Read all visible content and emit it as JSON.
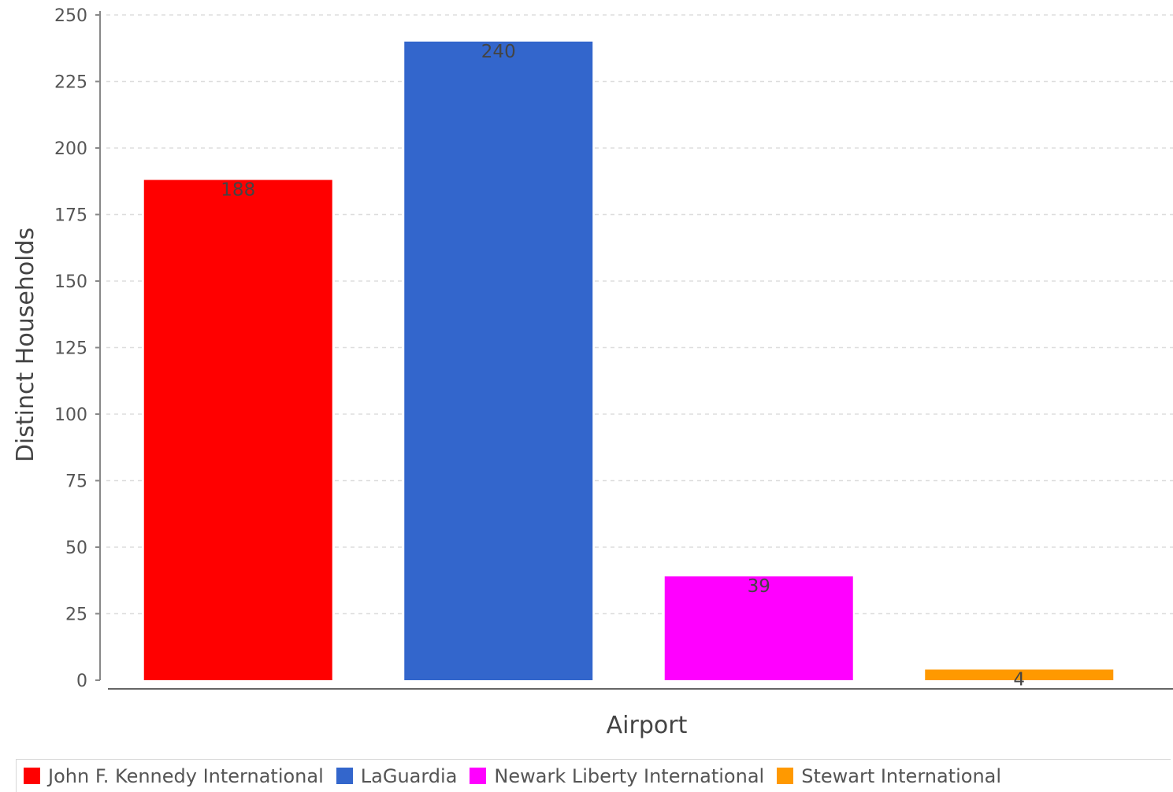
{
  "chart_data": {
    "type": "bar",
    "categories": [
      "John F. Kennedy International",
      "LaGuardia",
      "Newark Liberty International",
      "Stewart International"
    ],
    "values": [
      188,
      240,
      39,
      4
    ],
    "colors": [
      "#ff0000",
      "#3366cc",
      "#ff00ff",
      "#ff9900"
    ],
    "xlabel": "Airport",
    "ylabel": "Distinct Households",
    "ylim": [
      0,
      250
    ],
    "yticks": [
      0,
      25,
      50,
      75,
      100,
      125,
      150,
      175,
      200,
      225,
      250
    ],
    "grid": true,
    "legend": "bottom",
    "show_data_labels": true
  }
}
